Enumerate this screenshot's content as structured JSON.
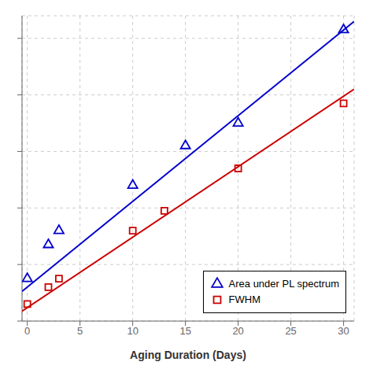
{
  "chart_data": {
    "type": "scatter",
    "title": "",
    "xlabel": "Aging Duration (Days)",
    "xlim": [
      -0.5,
      31
    ],
    "ylim": [
      0,
      1.08
    ],
    "xticks": [
      0,
      5,
      10,
      15,
      20,
      25,
      30
    ],
    "yticks": [
      0.0,
      0.2,
      0.4,
      0.6,
      0.8,
      1.0
    ],
    "grid": true,
    "legend": "lower right",
    "tick_labels": "x",
    "series": [
      {
        "type": "line",
        "color": "#0000cc",
        "x": [
          -0.5,
          31
        ],
        "values": [
          0.105,
          1.06
        ]
      },
      {
        "type": "line",
        "color": "#cc0000",
        "x": [
          -0.5,
          31
        ],
        "values": [
          0.035,
          0.82
        ]
      },
      {
        "name": "Area under PL spectrum",
        "type": "scatter",
        "marker": "triangle",
        "color": "#0000cc",
        "x": [
          0,
          2,
          3,
          10,
          15,
          20,
          30
        ],
        "values": [
          0.15,
          0.27,
          0.32,
          0.48,
          0.62,
          0.7,
          1.03
        ]
      },
      {
        "name": "FWHM",
        "type": "scatter",
        "marker": "square",
        "color": "#cc0000",
        "x": [
          0,
          2,
          3,
          10,
          13,
          20,
          30
        ],
        "values": [
          0.06,
          0.12,
          0.15,
          0.32,
          0.39,
          0.54,
          0.77
        ]
      }
    ]
  }
}
